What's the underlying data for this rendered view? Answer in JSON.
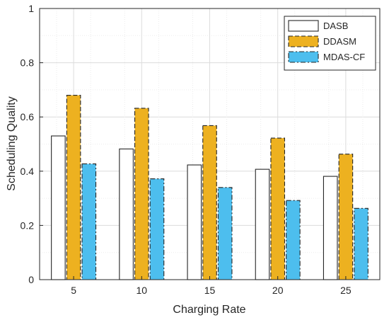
{
  "chart_data": {
    "type": "bar",
    "title": "",
    "xlabel": "Charging Rate",
    "ylabel": "Scheduling Quality",
    "categories": [
      "5",
      "10",
      "15",
      "20",
      "25"
    ],
    "ylim": [
      0,
      1
    ],
    "yticks": [
      "0",
      "0.2",
      "0.4",
      "0.6",
      "0.8",
      "1"
    ],
    "grid": true,
    "legend_position": "top-right",
    "series": [
      {
        "name": "DASB",
        "values": [
          0.53,
          0.482,
          0.423,
          0.407,
          0.381
        ],
        "color": "#ffffff",
        "edge": "#262626",
        "style": "solid"
      },
      {
        "name": "DDASM",
        "values": [
          0.68,
          0.632,
          0.568,
          0.522,
          0.463
        ],
        "color": "#edb120",
        "edge": "#262626",
        "style": "dashed"
      },
      {
        "name": "MDAS-CF",
        "values": [
          0.427,
          0.372,
          0.34,
          0.292,
          0.263
        ],
        "color": "#4dbeee",
        "edge": "#262626",
        "style": "dashdot"
      }
    ]
  }
}
